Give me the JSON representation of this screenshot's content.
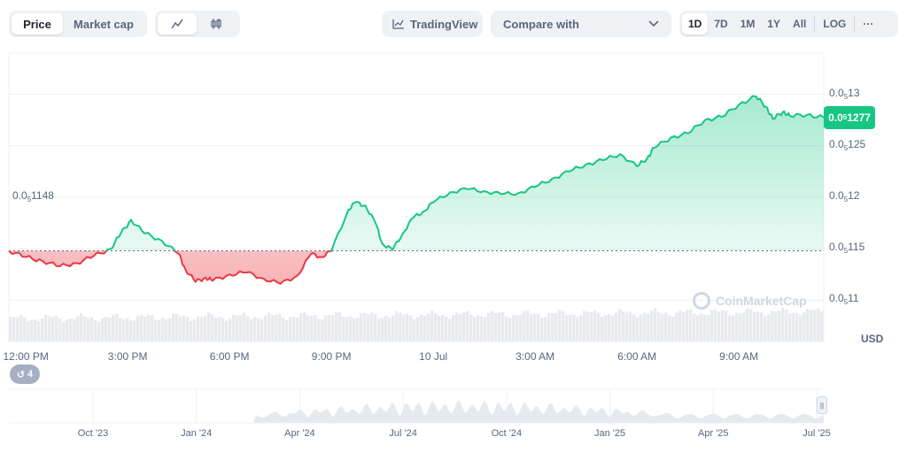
{
  "toolbar": {
    "view_tabs": [
      "Price",
      "Market cap"
    ],
    "active_view": "Price",
    "chart_modes": [
      "line-chart-icon",
      "candlestick-icon"
    ],
    "tradingview_label": "TradingView",
    "compare_label": "Compare with",
    "timeframes": [
      "1D",
      "7D",
      "1M",
      "1Y",
      "All"
    ],
    "active_timeframe": "1D",
    "log_label": "LOG",
    "more_label": "···"
  },
  "current_price": {
    "base": "0.0",
    "sub": "5",
    "rest": "1277"
  },
  "open_price": {
    "base": "0.0",
    "sub": "5",
    "rest": "1148"
  },
  "currency": "USD",
  "events_count": "4",
  "watermark": "CoinMarketCap",
  "colors": {
    "up": "#16c784",
    "down": "#ea3943",
    "grid": "#eef0f3",
    "muted": "#58667e"
  },
  "chart_data": {
    "type": "area",
    "title": "",
    "xlabel": "",
    "ylabel": "USD",
    "scale_note": "prices shown as 0.0 with subscript 5 meaning five zeros after the decimal point",
    "y_ticks": [
      {
        "base": "0.0",
        "sub": "5",
        "rest": "13",
        "value": 1.3e-06
      },
      {
        "base": "0.0",
        "sub": "5",
        "rest": "125",
        "value": 1.25e-06
      },
      {
        "base": "0.0",
        "sub": "5",
        "rest": "12",
        "value": 1.2e-06
      },
      {
        "base": "0.0",
        "sub": "5",
        "rest": "115",
        "value": 1.15e-06
      },
      {
        "base": "0.0",
        "sub": "5",
        "rest": "11",
        "value": 1.1e-06
      }
    ],
    "ylim": [
      1.06e-06,
      1.34e-06
    ],
    "baseline": 1.148e-06,
    "x_ticks": [
      {
        "label": "12:00 PM",
        "t": 0.5
      },
      {
        "label": "3:00 PM",
        "t": 3.5
      },
      {
        "label": "6:00 PM",
        "t": 6.5
      },
      {
        "label": "9:00 PM",
        "t": 9.5
      },
      {
        "label": "10 Jul",
        "t": 12.5
      },
      {
        "label": "3:00 AM",
        "t": 15.5
      },
      {
        "label": "6:00 AM",
        "t": 18.5
      },
      {
        "label": "9:00 AM",
        "t": 21.5
      }
    ],
    "xlim": [
      0,
      24
    ],
    "series": [
      {
        "t": [
          0,
          0.5,
          1,
          1.5,
          2,
          2.5,
          3,
          3.3,
          3.6,
          4,
          4.5,
          5,
          5.2,
          5.5,
          5.8,
          6,
          6.5,
          7,
          7.5,
          8,
          8.5,
          8.9,
          9.2,
          9.5,
          10,
          10.2,
          10.5,
          10.8,
          11,
          11.3,
          11.6,
          11.9,
          12.2,
          12.5,
          13,
          13.5,
          14,
          14.5,
          15,
          15.5,
          16,
          16.5,
          17,
          17.5,
          18,
          18.5,
          18.8,
          19,
          19.5,
          20,
          20.5,
          21,
          21.5,
          22,
          22.3,
          22.5,
          22.8,
          23,
          23.5,
          24
        ],
        "values": [
          1.148e-06,
          1.142e-06,
          1.138e-06,
          1.133e-06,
          1.136e-06,
          1.143e-06,
          1.15e-06,
          1.165e-06,
          1.178e-06,
          1.165e-06,
          1.158e-06,
          1.145e-06,
          1.13e-06,
          1.118e-06,
          1.122e-06,
          1.119e-06,
          1.125e-06,
          1.127e-06,
          1.121e-06,
          1.116e-06,
          1.124e-06,
          1.145e-06,
          1.142e-06,
          1.148e-06,
          1.188e-06,
          1.195e-06,
          1.192e-06,
          1.175e-06,
          1.155e-06,
          1.149e-06,
          1.165e-06,
          1.18e-06,
          1.186e-06,
          1.195e-06,
          1.205e-06,
          1.208e-06,
          1.206e-06,
          1.203e-06,
          1.204e-06,
          1.21e-06,
          1.218e-06,
          1.225e-06,
          1.232e-06,
          1.236e-06,
          1.242e-06,
          1.23e-06,
          1.238e-06,
          1.248e-06,
          1.258e-06,
          1.262e-06,
          1.275e-06,
          1.278e-06,
          1.29e-06,
          1.298e-06,
          1.288e-06,
          1.276e-06,
          1.283e-06,
          1.279e-06,
          1.28e-06,
          1.2775e-06
        ]
      }
    ],
    "range_ticks": [
      "Oct '23",
      "Jan '24",
      "Apr '24",
      "Jul '24",
      "Oct '24",
      "Jan '25",
      "Apr '25",
      "Jul '25"
    ],
    "grid": true,
    "legend": "none"
  }
}
